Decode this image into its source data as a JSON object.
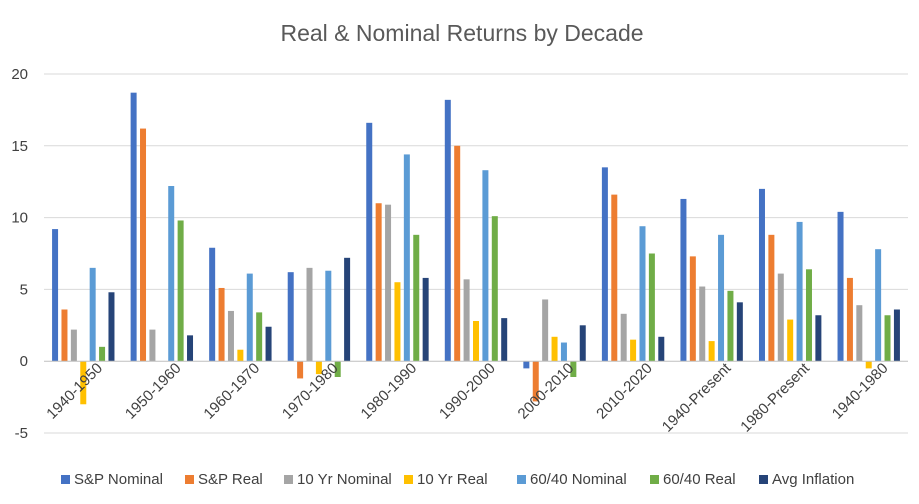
{
  "chart_data": {
    "type": "bar",
    "title": "Real & Nominal Returns by Decade",
    "xlabel": "",
    "ylabel": "",
    "ylim": [
      -5,
      20
    ],
    "yticks": [
      -5,
      0,
      5,
      10,
      15,
      20
    ],
    "grid": true,
    "legend_position": "bottom",
    "categories": [
      "1940-1950",
      "1950-1960",
      "1960-1970",
      "1970-1980",
      "1980-1990",
      "1990-2000",
      "2000-2010",
      "2010-2020",
      "1940-Present",
      "1980-Present",
      "1940-1980"
    ],
    "series": [
      {
        "name": "S&P Nominal",
        "color": "#4472c4",
        "values": [
          9.2,
          18.7,
          7.9,
          6.2,
          16.6,
          18.2,
          -0.5,
          13.5,
          11.3,
          12.0,
          10.4
        ]
      },
      {
        "name": "S&P Real",
        "color": "#ed7d31",
        "values": [
          3.6,
          16.2,
          5.1,
          -1.2,
          11.0,
          15.0,
          -2.8,
          11.6,
          7.3,
          8.8,
          5.8
        ]
      },
      {
        "name": "10 Yr  Nominal",
        "color": "#a5a5a5",
        "values": [
          2.2,
          2.2,
          3.5,
          6.5,
          10.9,
          5.7,
          4.3,
          3.3,
          5.2,
          6.1,
          3.9
        ]
      },
      {
        "name": "10 Yr Real",
        "color": "#ffc000",
        "values": [
          -3.0,
          0.0,
          0.8,
          -0.9,
          5.5,
          2.8,
          1.7,
          1.5,
          1.4,
          2.9,
          -0.5
        ]
      },
      {
        "name": "60/40 Nominal",
        "color": "#5b9bd5",
        "values": [
          6.5,
          12.2,
          6.1,
          6.3,
          14.4,
          13.3,
          1.3,
          9.4,
          8.8,
          9.7,
          7.8
        ]
      },
      {
        "name": "60/40 Real",
        "color": "#70ad47",
        "values": [
          1.0,
          9.8,
          3.4,
          -1.1,
          8.8,
          10.1,
          -1.1,
          7.5,
          4.9,
          6.4,
          3.2
        ]
      },
      {
        "name": "Avg Inflation",
        "color": "#264478",
        "values": [
          4.8,
          1.8,
          2.4,
          7.2,
          5.8,
          3.0,
          2.5,
          1.7,
          4.1,
          3.2,
          3.6
        ]
      }
    ]
  }
}
